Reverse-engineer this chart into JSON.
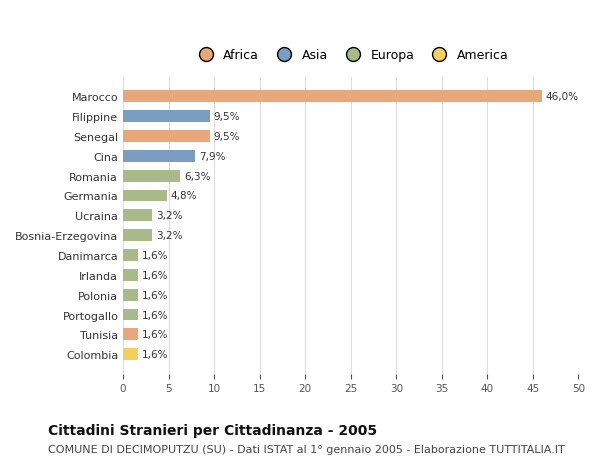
{
  "countries": [
    "Marocco",
    "Filippine",
    "Senegal",
    "Cina",
    "Romania",
    "Germania",
    "Ucraina",
    "Bosnia-Erzegovina",
    "Danimarca",
    "Irlanda",
    "Polonia",
    "Portogallo",
    "Tunisia",
    "Colombia"
  ],
  "values": [
    46.0,
    9.5,
    9.5,
    7.9,
    6.3,
    4.8,
    3.2,
    3.2,
    1.6,
    1.6,
    1.6,
    1.6,
    1.6,
    1.6
  ],
  "labels": [
    "46,0%",
    "9,5%",
    "9,5%",
    "7,9%",
    "6,3%",
    "4,8%",
    "3,2%",
    "3,2%",
    "1,6%",
    "1,6%",
    "1,6%",
    "1,6%",
    "1,6%",
    "1,6%"
  ],
  "continents": [
    "Africa",
    "Asia",
    "Africa",
    "Asia",
    "Europa",
    "Europa",
    "Europa",
    "Europa",
    "Europa",
    "Europa",
    "Europa",
    "Europa",
    "Africa",
    "America"
  ],
  "continent_colors": {
    "Africa": "#E8A87C",
    "Asia": "#7B9DC0",
    "Europa": "#A8BA8A",
    "America": "#F0D060"
  },
  "legend_order": [
    "Africa",
    "Asia",
    "Europa",
    "America"
  ],
  "legend_colors": [
    "#E8A87C",
    "#7B9DC0",
    "#A8BA8A",
    "#F0D060"
  ],
  "xlim": [
    0,
    50
  ],
  "xticks": [
    0,
    5,
    10,
    15,
    20,
    25,
    30,
    35,
    40,
    45,
    50
  ],
  "background_color": "#ffffff",
  "title": "Cittadini Stranieri per Cittadinanza - 2005",
  "subtitle": "COMUNE DI DECIMOPUTZU (SU) - Dati ISTAT al 1° gennaio 2005 - Elaborazione TUTTITALIA.IT",
  "title_fontsize": 10,
  "subtitle_fontsize": 8,
  "bar_height": 0.6,
  "grid_color": "#dddddd"
}
